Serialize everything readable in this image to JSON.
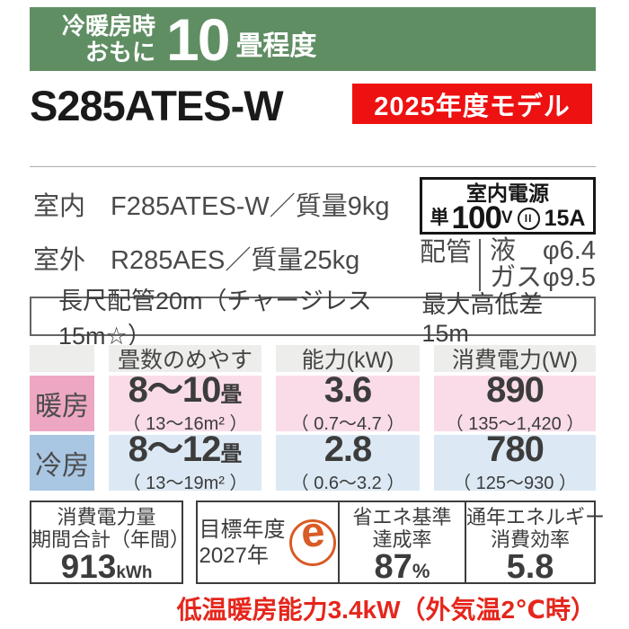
{
  "banner": {
    "line1": "冷暖房時",
    "line2": "おもに",
    "size": "10",
    "unit": "畳程度"
  },
  "model": "S285ATES-W",
  "badge": "2025年度モデル",
  "units": {
    "indoor_label": "室内",
    "indoor_value": "F285ATES-W／質量9kg",
    "outdoor_label": "室外",
    "outdoor_value": "R285AES／質量25kg"
  },
  "power_box": {
    "title": "室内電源",
    "phase": "単",
    "voltage": "100",
    "volt_unit": "V",
    "plug": "II",
    "amp": "15A"
  },
  "piping": {
    "label": "配管",
    "rows": [
      {
        "name": "液",
        "dia": "φ6.4"
      },
      {
        "name": "ガス",
        "dia": "φ9.5"
      }
    ]
  },
  "pipe_info": {
    "left": "長尺配管20m（チャージレス15m☆）",
    "right": "最大高低差15m"
  },
  "spec_table": {
    "headers": [
      "畳数のめやす",
      "能力(kW)",
      "消費電力(W)"
    ],
    "rows": [
      {
        "label": "暖房",
        "tatami": "8～10",
        "tatami_unit": "畳",
        "tatami_range": "（ 13～16m² ）",
        "capacity": "3.6",
        "capacity_range": "（ 0.7～4.7 ）",
        "power": "890",
        "power_range": "（ 135～1,420 ）"
      },
      {
        "label": "冷房",
        "tatami": "8～12",
        "tatami_unit": "畳",
        "tatami_range": "（ 13～19m² ）",
        "capacity": "2.8",
        "capacity_range": "（ 0.6～3.2 ）",
        "power": "780",
        "power_range": "（ 125～930 ）"
      }
    ]
  },
  "energy": {
    "annual_label1": "消費電力量",
    "annual_label2": "期間合計（年間）",
    "annual_value": "913",
    "annual_unit": "kWh",
    "target_label1": "目標年度",
    "target_label2": "2027年",
    "emark": "e",
    "standard_label1": "省エネ基準",
    "standard_label2": "達成率",
    "standard_value": "87",
    "standard_unit": "%",
    "apf_label1": "通年エネルギー",
    "apf_label2": "消費効率",
    "apf_value": "5.8"
  },
  "footnote": "低温暖房能力3.4kW（外気温2℃時）",
  "colors": {
    "banner_green": "#608e63",
    "badge_red": "#ee1111",
    "heating_label_pink": "#eda7c2",
    "heating_row_pink": "#f9dce8",
    "cooling_label_blue": "#a9c6e3",
    "cooling_row_blue": "#dce9f4",
    "header_gray": "#ededeb",
    "emark_orange": "#d95b26",
    "footnote_red": "#e5261c"
  }
}
